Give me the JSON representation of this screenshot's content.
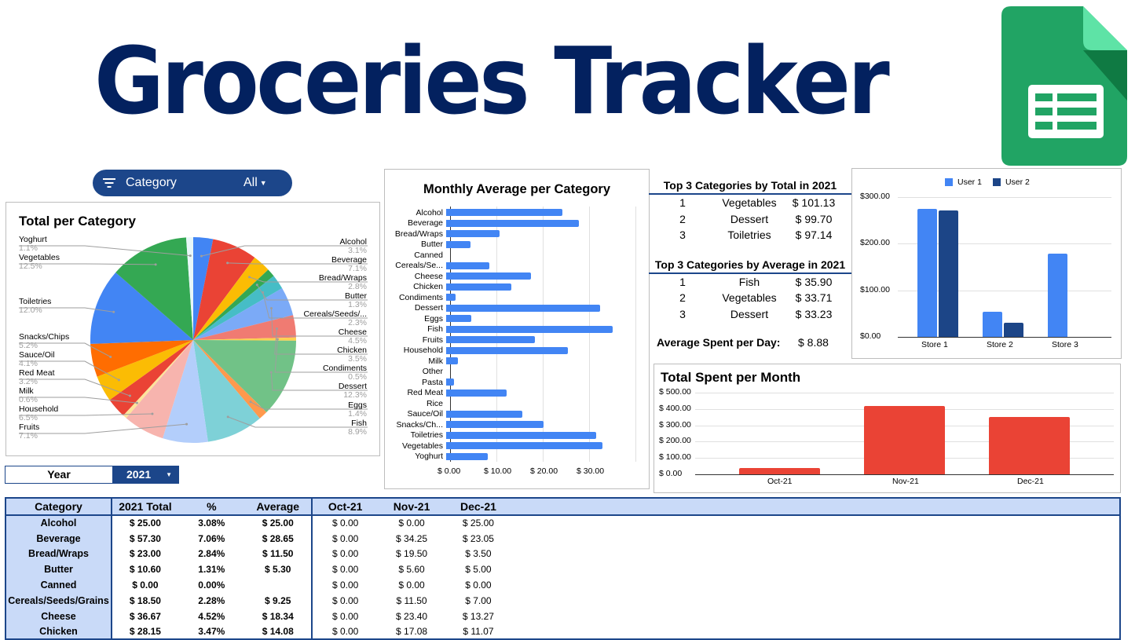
{
  "header": {
    "title": "Groceries Tracker",
    "logo_icon": "google-sheets-icon"
  },
  "filter": {
    "icon": "filter-icon",
    "label": "Category",
    "value": "All"
  },
  "year_selector": {
    "label": "Year",
    "value": "2021"
  },
  "top_total": {
    "title": "Top 3 Categories by Total in 2021",
    "rows": [
      [
        "1",
        "Vegetables",
        "$ 101.13"
      ],
      [
        "2",
        "Dessert",
        "$ 99.70"
      ],
      [
        "3",
        "Toiletries",
        "$ 97.14"
      ]
    ]
  },
  "top_average": {
    "title": "Top 3 Categories by Average in 2021",
    "rows": [
      [
        "1",
        "Fish",
        "$ 35.90"
      ],
      [
        "2",
        "Vegetables",
        "$ 33.71"
      ],
      [
        "3",
        "Dessert",
        "$ 33.23"
      ]
    ]
  },
  "avg_day": {
    "label": "Average Spent per Day:",
    "value": "$ 8.88"
  },
  "table": {
    "headers": [
      "Category",
      "2021 Total",
      "%",
      "Average",
      "Oct-21",
      "Nov-21",
      "Dec-21"
    ],
    "rows": [
      [
        "Alcohol",
        "$ 25.00",
        "3.08%",
        "$ 25.00",
        "$ 0.00",
        "$ 0.00",
        "$ 25.00"
      ],
      [
        "Beverage",
        "$ 57.30",
        "7.06%",
        "$ 28.65",
        "$ 0.00",
        "$ 34.25",
        "$ 23.05"
      ],
      [
        "Bread/Wraps",
        "$ 23.00",
        "2.84%",
        "$ 11.50",
        "$ 0.00",
        "$ 19.50",
        "$ 3.50"
      ],
      [
        "Butter",
        "$ 10.60",
        "1.31%",
        "$ 5.30",
        "$ 0.00",
        "$ 5.60",
        "$ 5.00"
      ],
      [
        "Canned",
        "$ 0.00",
        "0.00%",
        "",
        "$ 0.00",
        "$ 0.00",
        "$ 0.00"
      ],
      [
        "Cereals/Seeds/Grains",
        "$ 18.50",
        "2.28%",
        "$ 9.25",
        "$ 0.00",
        "$ 11.50",
        "$ 7.00"
      ],
      [
        "Cheese",
        "$ 36.67",
        "4.52%",
        "$ 18.34",
        "$ 0.00",
        "$ 23.40",
        "$ 13.27"
      ],
      [
        "Chicken",
        "$ 28.15",
        "3.47%",
        "$ 14.08",
        "$ 0.00",
        "$ 17.08",
        "$ 11.07"
      ]
    ]
  },
  "chart_data": [
    {
      "type": "pie",
      "title": "Total per Category",
      "slices": [
        {
          "label": "Alcohol",
          "pct": 3.1,
          "color": "#4285f4"
        },
        {
          "label": "Beverage",
          "pct": 7.1,
          "color": "#ea4335"
        },
        {
          "label": "Bread/Wraps",
          "pct": 2.8,
          "color": "#fbbc04"
        },
        {
          "label": "Butter",
          "pct": 1.3,
          "color": "#34a853"
        },
        {
          "label": "Cereals/Seeds/...",
          "pct": 2.3,
          "color": "#46bdc6"
        },
        {
          "label": "Cheese",
          "pct": 4.5,
          "color": "#7baaf7"
        },
        {
          "label": "Chicken",
          "pct": 3.5,
          "color": "#f07b72"
        },
        {
          "label": "Condiments",
          "pct": 0.5,
          "color": "#fcd04f"
        },
        {
          "label": "Dessert",
          "pct": 12.3,
          "color": "#71c287"
        },
        {
          "label": "Eggs",
          "pct": 1.4,
          "color": "#ff994d"
        },
        {
          "label": "Fish",
          "pct": 8.9,
          "color": "#7ed1d7"
        },
        {
          "label": "Fruits",
          "pct": 7.1,
          "color": "#b3cefb"
        },
        {
          "label": "Household",
          "pct": 6.5,
          "color": "#f7b4ae"
        },
        {
          "label": "Milk",
          "pct": 0.6,
          "color": "#fde49b"
        },
        {
          "label": "Red Meat",
          "pct": 3.2,
          "color": "#ea4335"
        },
        {
          "label": "Sauce/Oil",
          "pct": 4.1,
          "color": "#fbbc04"
        },
        {
          "label": "Snacks/Chips",
          "pct": 5.2,
          "color": "#ff6d01"
        },
        {
          "label": "Toiletries",
          "pct": 12.0,
          "color": "#4285f4"
        },
        {
          "label": "Vegetables",
          "pct": 12.5,
          "color": "#34a853"
        },
        {
          "label": "Yoghurt",
          "pct": 1.1,
          "color": "#e8f7f8"
        }
      ]
    },
    {
      "type": "bar",
      "title": "Monthly Average per Category",
      "orientation": "horizontal",
      "categories": [
        "Alcohol",
        "Beverage",
        "Bread/Wraps",
        "Butter",
        "Canned",
        "Cereals/Se...",
        "Cheese",
        "Chicken",
        "Condiments",
        "Dessert",
        "Eggs",
        "Fish",
        "Fruits",
        "Household",
        "Milk",
        "Other",
        "Pasta",
        "Red Meat",
        "Rice",
        "Sauce/Oil",
        "Snacks/Ch...",
        "Toiletries",
        "Vegetables",
        "Yoghurt"
      ],
      "values": [
        25.0,
        28.65,
        11.5,
        5.3,
        0,
        9.25,
        18.34,
        14.08,
        2.0,
        33.23,
        5.5,
        35.9,
        19.2,
        26.2,
        2.5,
        0,
        1.7,
        13.0,
        0,
        16.5,
        21.1,
        32.4,
        33.71,
        9.0
      ],
      "xticks": [
        "$ 0.00",
        "$ 10.00",
        "$ 20.00",
        "$ 30.00"
      ],
      "xlim": [
        0,
        40
      ],
      "color": "#4285f4"
    },
    {
      "type": "bar",
      "title": "",
      "categories": [
        "Store 1",
        "Store 2",
        "Store 3"
      ],
      "series": [
        {
          "name": "User 1",
          "color": "#4285f4",
          "values": [
            275,
            54,
            178
          ]
        },
        {
          "name": "User 2",
          "color": "#1c4587",
          "values": [
            271,
            31,
            0
          ]
        }
      ],
      "yticks": [
        "$0.00",
        "$100.00",
        "$200.00",
        "$300.00"
      ],
      "ylim": [
        0,
        300
      ],
      "legend": "top"
    },
    {
      "type": "bar",
      "title": "Total Spent per Month",
      "categories": [
        "Oct-21",
        "Nov-21",
        "Dec-21"
      ],
      "values": [
        38,
        420,
        350
      ],
      "yticks": [
        "$ 0.00",
        "$ 100.00",
        "$ 200.00",
        "$ 300.00",
        "$ 400.00",
        "$ 500.00"
      ],
      "ylim": [
        0,
        500
      ],
      "color": "#ea4335"
    }
  ]
}
